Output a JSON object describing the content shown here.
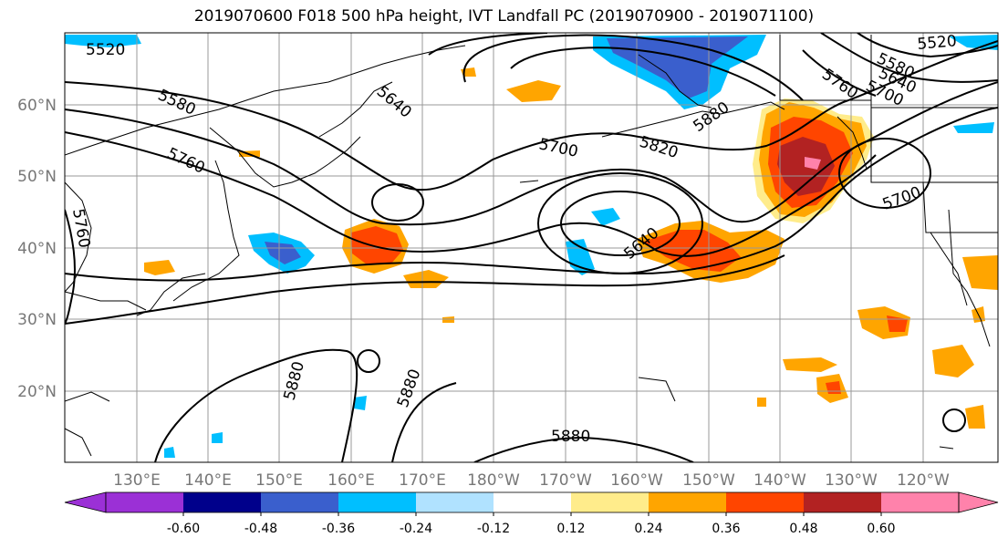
{
  "title": "2019070600 F018 500 hPa height, IVT Landfall PC (2019070900 - 2019071100)",
  "map": {
    "lat_labels": [
      "60°N",
      "50°N",
      "40°N",
      "30°N",
      "20°N"
    ],
    "lon_labels": [
      "130°E",
      "140°E",
      "150°E",
      "160°E",
      "170°E",
      "180°W",
      "170°W",
      "160°W",
      "150°W",
      "140°W",
      "130°W",
      "120°W"
    ],
    "contour_labels": [
      "5520",
      "5580",
      "5640",
      "5700",
      "5760",
      "5820",
      "5880",
      "5880",
      "5880",
      "5880",
      "5640",
      "5700",
      "5760",
      "5580",
      "5520",
      "5640",
      "5700",
      "5760"
    ],
    "colors": {
      "land_outline": "#000000",
      "grid": "#999999",
      "axis_label": "#777777"
    }
  },
  "colorbar": {
    "ticks": [
      "-0.60",
      "-0.48",
      "-0.36",
      "-0.24",
      "-0.12",
      "0.12",
      "0.24",
      "0.36",
      "0.48",
      "0.60"
    ],
    "colors": [
      "#9b30d6",
      "#00008b",
      "#3a5fcd",
      "#00bfff",
      "#b0e2ff",
      "#ffffff",
      "#ffec8b",
      "#ffa500",
      "#ff4500",
      "#b22222",
      "#ff82ab"
    ]
  }
}
